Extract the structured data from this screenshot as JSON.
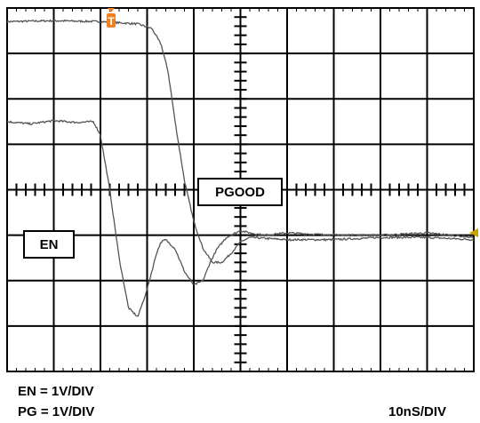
{
  "chart_data": {
    "type": "line",
    "instrument": "oscilloscope",
    "grid": {
      "divisions_x": 10,
      "divisions_y": 8,
      "shown": true
    },
    "x_axis": {
      "unit": "ns",
      "per_div": 10,
      "range": [
        0,
        100
      ]
    },
    "y_axis": {
      "unit": "V",
      "per_div": 1,
      "range": [
        -5,
        3
      ]
    },
    "series": [
      {
        "name": "PGOOD",
        "color": "#555555",
        "x": [
          0,
          10,
          20,
          28,
          31,
          33,
          34.5,
          36,
          38,
          40,
          42,
          44,
          46,
          48,
          50,
          52,
          60,
          70,
          80,
          90,
          100
        ],
        "y": [
          2.7,
          2.72,
          2.7,
          2.65,
          2.55,
          2.2,
          1.6,
          0.5,
          -0.8,
          -1.7,
          -2.3,
          -2.6,
          -2.6,
          -2.4,
          -2.15,
          -2.05,
          -2.1,
          -2.1,
          -2.05,
          -2.05,
          -2.1
        ]
      },
      {
        "name": "EN",
        "color": "#555555",
        "x": [
          0,
          5,
          10,
          15,
          18.5,
          20,
          22,
          24,
          26,
          28,
          30,
          32,
          33,
          34,
          36,
          38,
          40,
          42,
          43.5,
          45,
          47,
          49,
          50,
          52,
          55,
          60,
          70,
          80,
          90,
          100
        ],
        "y": [
          0.5,
          0.45,
          0.52,
          0.48,
          0.5,
          0.2,
          -1.0,
          -2.5,
          -3.6,
          -3.8,
          -3.2,
          -2.4,
          -2.15,
          -2.1,
          -2.3,
          -2.8,
          -3.1,
          -3.0,
          -2.6,
          -2.3,
          -2.05,
          -1.95,
          -1.9,
          -1.95,
          -2.0,
          -1.95,
          -2.0,
          -2.0,
          -1.95,
          -2.05
        ]
      }
    ]
  },
  "labels": {
    "pgood": "PGOOD",
    "en": "EN",
    "en_scale": "EN = 1V/DIV",
    "pg_scale": "PG = 1V/DIV",
    "timebase": "10nS/DIV",
    "trigger_glyph": "T"
  },
  "colors": {
    "grid": "#000000",
    "trace": "#555555",
    "trigger_marker": "#f08020",
    "level_marker": "#c8a000"
  }
}
